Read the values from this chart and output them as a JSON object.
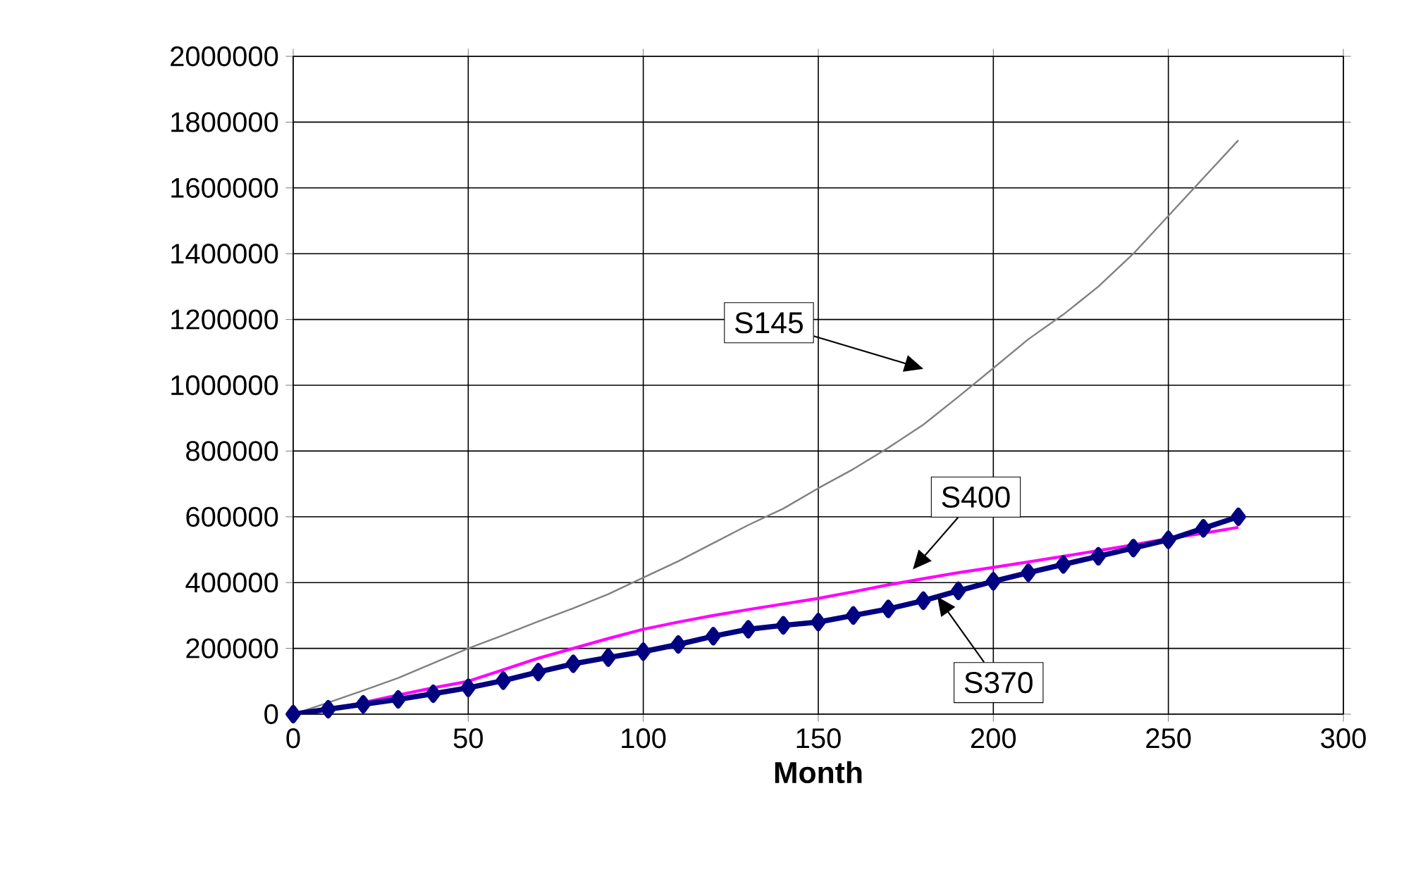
{
  "chart_data": {
    "type": "line",
    "xlabel": "Month",
    "grid": true,
    "line_style": "solid",
    "x": [
      0,
      10,
      20,
      30,
      40,
      50,
      60,
      70,
      80,
      90,
      100,
      110,
      120,
      130,
      140,
      150,
      160,
      170,
      180,
      190,
      200,
      210,
      220,
      230,
      240,
      250,
      260,
      270
    ],
    "xlim": [
      0,
      300
    ],
    "xticks": [
      0,
      50,
      100,
      150,
      200,
      250,
      300
    ],
    "ylim": [
      0,
      2000000
    ],
    "yticks": [
      0,
      200000,
      400000,
      600000,
      800000,
      1000000,
      1200000,
      1400000,
      1600000,
      1800000,
      2000000
    ],
    "series": [
      {
        "color": "#808080",
        "marker": "none",
        "values": [
          0,
          35000,
          72000,
          110000,
          155000,
          200000,
          240000,
          282000,
          322000,
          365000,
          415000,
          465000,
          520000,
          575000,
          625000,
          687000,
          745000,
          810000,
          880000,
          965000,
          1052000,
          1140000,
          1215000,
          1300000,
          1400000,
          1515000,
          1630000,
          1745000
        ]
      },
      {
        "color": "#ff00ff",
        "marker": "none",
        "values": [
          0,
          15000,
          35000,
          58000,
          80000,
          100000,
          135000,
          170000,
          200000,
          230000,
          258000,
          280000,
          300000,
          318000,
          335000,
          352000,
          372000,
          393000,
          412000,
          430000,
          446000,
          463000,
          480000,
          497000,
          515000,
          534000,
          550000,
          568000
        ]
      },
      {
        "color": "#000080",
        "marker": "diamond",
        "values": [
          0,
          15000,
          30000,
          45000,
          62000,
          80000,
          102000,
          128000,
          153000,
          172000,
          190000,
          212000,
          237000,
          258000,
          270000,
          280000,
          300000,
          320000,
          345000,
          375000,
          404000,
          430000,
          455000,
          480000,
          505000,
          530000,
          565000,
          600000
        ]
      }
    ],
    "annotations": [
      "S145",
      "S400",
      {
        "text": "S370",
        "x": 184,
        "y": 357000
      }
    ]
  }
}
